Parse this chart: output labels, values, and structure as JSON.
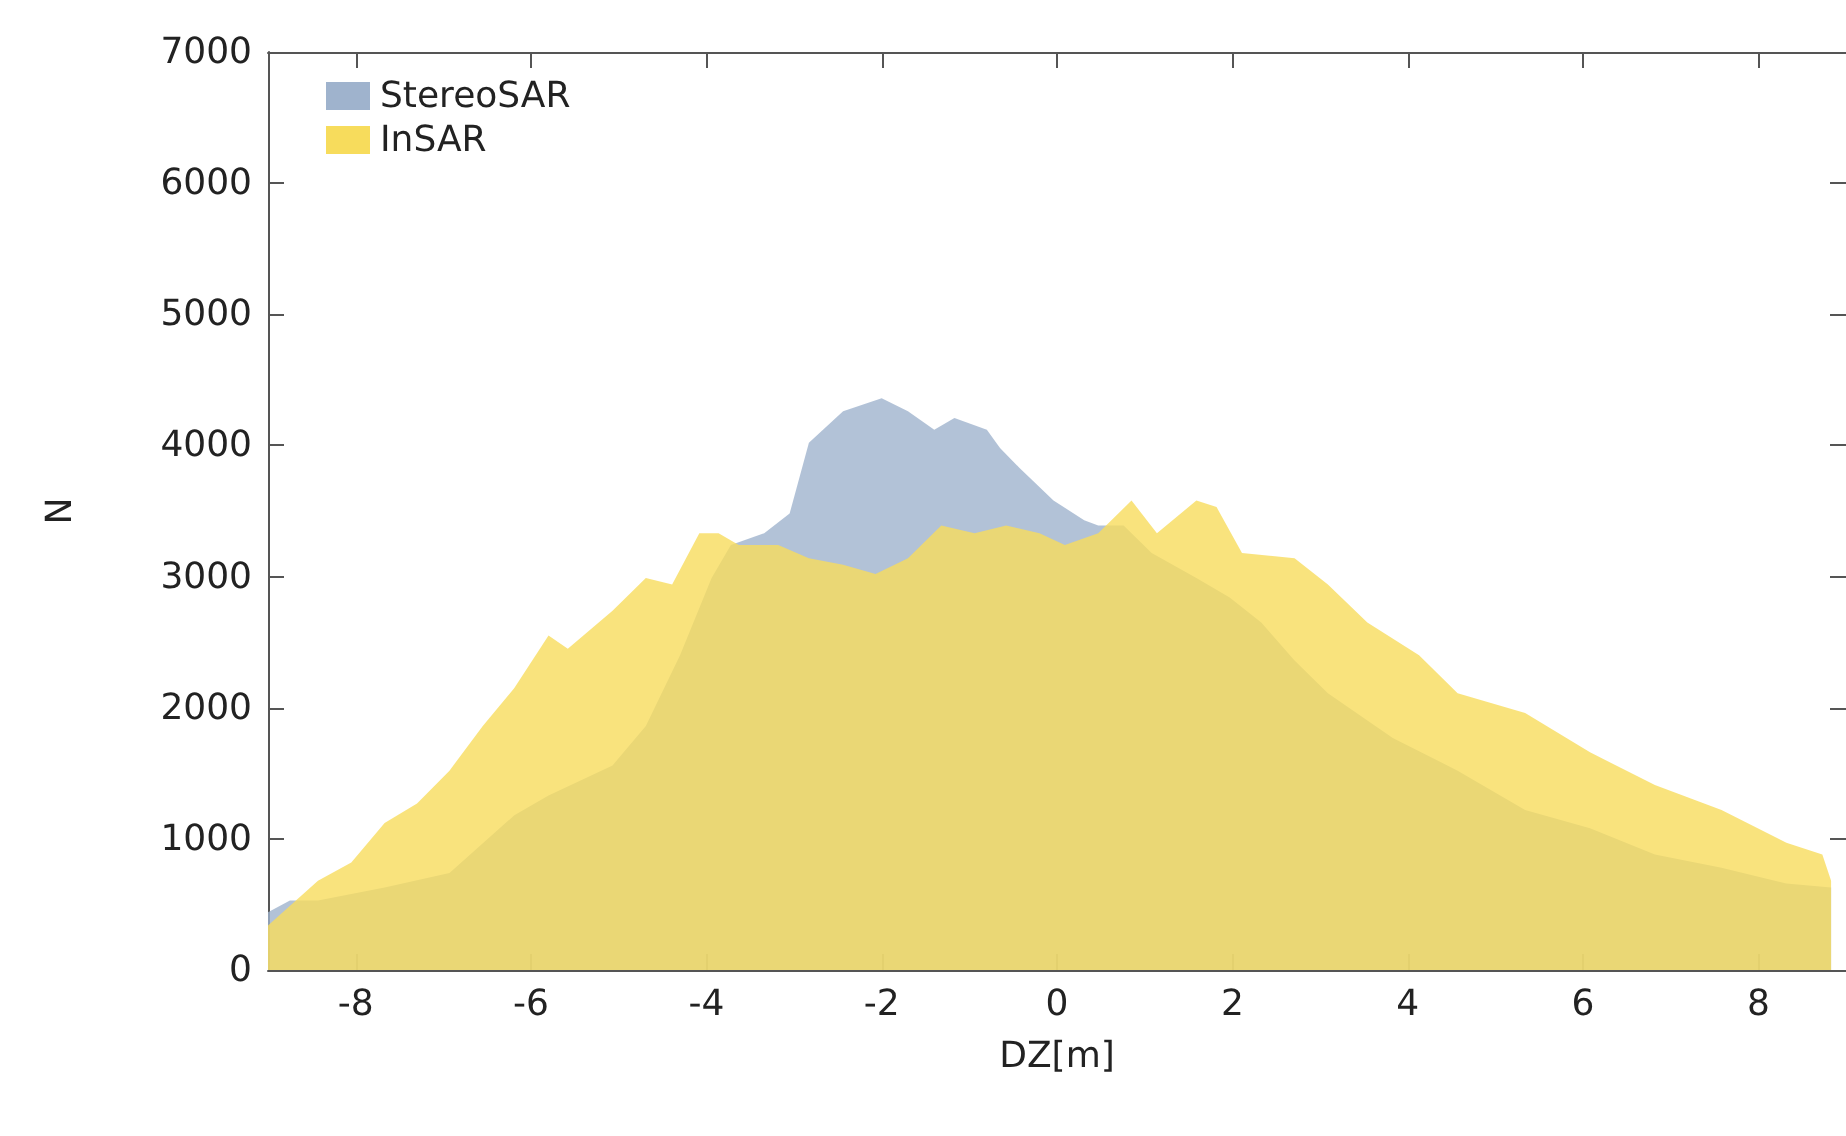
{
  "chart_data": {
    "type": "area",
    "xlabel": "DZ[m]",
    "ylabel": "N",
    "xlim": [
      -9,
      9
    ],
    "xticks": [
      -8,
      -6,
      -4,
      -2,
      0,
      2,
      4,
      6,
      8
    ],
    "ylim": [
      0,
      7000
    ],
    "yticks": [
      0,
      1000,
      2000,
      3000,
      4000,
      5000,
      6000,
      7000
    ],
    "grid": false,
    "legend": "top left",
    "series": [
      {
        "name": "StereoSAR",
        "color": "#9fb3cd",
        "x": [
          -9,
          -8.75,
          -8.43,
          -7.67,
          -6.93,
          -6.19,
          -5.8,
          -5.07,
          -4.69,
          -4.3,
          -3.94,
          -3.72,
          -3.34,
          -3.05,
          -2.83,
          -2.44,
          -2,
          -1.7,
          -1.4,
          -1.17,
          -0.8,
          -0.65,
          -0.43,
          -0.04,
          0.31,
          0.47,
          0.76,
          1.08,
          1.59,
          1.97,
          2.33,
          2.71,
          3.09,
          3.83,
          4.57,
          5.34,
          6.08,
          6.82,
          7.58,
          8.32,
          8.83
        ],
        "values": [
          440,
          530,
          530,
          630,
          740,
          1180,
          1330,
          1560,
          1860,
          2400,
          2990,
          3240,
          3330,
          3480,
          4020,
          4260,
          4360,
          4260,
          4120,
          4210,
          4120,
          3980,
          3830,
          3580,
          3430,
          3390,
          3390,
          3180,
          2990,
          2840,
          2650,
          2360,
          2110,
          1770,
          1520,
          1220,
          1080,
          880,
          780,
          660,
          630
        ]
      },
      {
        "name": "InSAR",
        "color": "#f7dc5c",
        "x": [
          -9,
          -8.43,
          -8.05,
          -7.67,
          -7.3,
          -6.93,
          -6.55,
          -6.19,
          -5.8,
          -5.58,
          -5.07,
          -4.69,
          -4.39,
          -4.08,
          -3.86,
          -3.63,
          -3.18,
          -2.83,
          -2.44,
          -2.07,
          -1.7,
          -1.32,
          -0.94,
          -0.58,
          -0.2,
          0.09,
          0.47,
          0.85,
          1.14,
          1.59,
          1.82,
          2.11,
          2.71,
          3.09,
          3.54,
          4.13,
          4.57,
          5.34,
          6.08,
          6.82,
          7.58,
          8.32,
          8.73,
          8.83
        ],
        "values": [
          340,
          680,
          820,
          1120,
          1270,
          1520,
          1860,
          2150,
          2550,
          2450,
          2740,
          2990,
          2940,
          3330,
          3330,
          3240,
          3240,
          3140,
          3090,
          3020,
          3140,
          3390,
          3330,
          3390,
          3330,
          3240,
          3330,
          3580,
          3330,
          3580,
          3530,
          3180,
          3140,
          2940,
          2650,
          2400,
          2110,
          1960,
          1660,
          1410,
          1220,
          970,
          880,
          680
        ]
      }
    ]
  }
}
